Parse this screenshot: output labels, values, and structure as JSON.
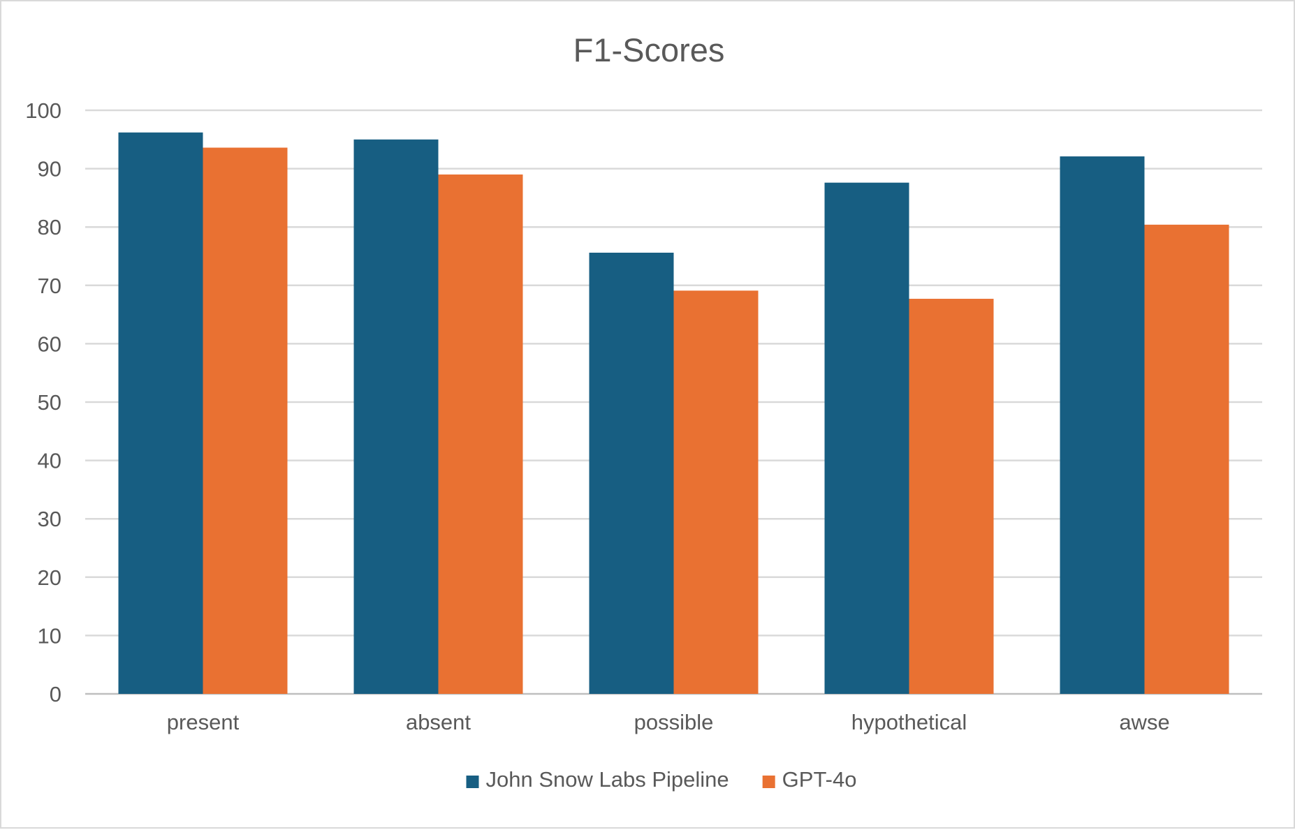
{
  "chart_data": {
    "type": "bar",
    "title": "F1-Scores",
    "xlabel": "",
    "ylabel": "",
    "categories": [
      "present",
      "absent",
      "possible",
      "hypothetical",
      "awse"
    ],
    "series": [
      {
        "name": "John Snow Labs Pipeline",
        "color": "#175e82",
        "values": [
          96.2,
          95.0,
          75.6,
          87.6,
          92.1
        ]
      },
      {
        "name": "GPT-4o",
        "color": "#e97132",
        "values": [
          93.6,
          89.0,
          69.1,
          67.7,
          80.4
        ]
      }
    ],
    "ylim": [
      0,
      100
    ],
    "yticks": [
      0,
      10,
      20,
      30,
      40,
      50,
      60,
      70,
      80,
      90,
      100
    ],
    "grid": true,
    "legend_position": "bottom"
  }
}
